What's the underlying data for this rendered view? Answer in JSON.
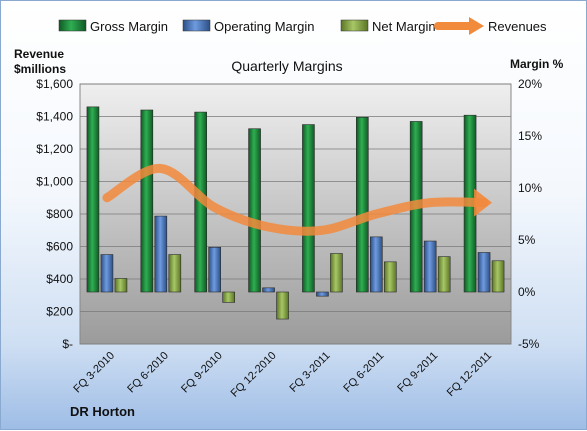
{
  "chart_data": {
    "type": "bar",
    "title": "Quarterly Margins",
    "company": "DR Horton",
    "ylabel_left": "Revenue\n$millions",
    "ylabel_right": "Margin %",
    "categories": [
      "FQ 3-2010",
      "FQ 6-2010",
      "FQ 9-2010",
      "FQ 12-2010",
      "FQ 3-2011",
      "FQ 6-2011",
      "FQ 9-2011",
      "FQ 12-2011"
    ],
    "left_axis": {
      "min": 0,
      "max": 1600,
      "step": 200,
      "tick_labels": [
        "$-",
        "$200",
        "$400",
        "$600",
        "$800",
        "$1,000",
        "$1,200",
        "$1,400",
        "$1,600"
      ]
    },
    "right_axis": {
      "min": -5,
      "max": 20,
      "step": 5,
      "tick_labels": [
        "-5%",
        "0%",
        "5%",
        "10%",
        "15%",
        "20%"
      ]
    },
    "series": [
      {
        "name": "Gross Margin",
        "type": "bar",
        "axis": "right",
        "color": "#1e8a3c",
        "values": [
          17.8,
          17.5,
          17.3,
          15.7,
          16.1,
          16.8,
          16.4,
          17.0
        ]
      },
      {
        "name": "Operating Margin",
        "type": "bar",
        "axis": "right",
        "color": "#4f7fc4",
        "values": [
          3.6,
          7.3,
          4.3,
          0.4,
          -0.4,
          5.3,
          4.9,
          3.8
        ]
      },
      {
        "name": "Net Margin",
        "type": "bar",
        "axis": "right",
        "color": "#8fb04c",
        "values": [
          1.3,
          3.6,
          -1.0,
          -2.6,
          3.7,
          2.9,
          3.4,
          3.0
        ]
      },
      {
        "name": "Revenues",
        "type": "line",
        "axis": "left",
        "color": "#f28a3c",
        "values": [
          900,
          1080,
          840,
          720,
          700,
          800,
          870,
          870
        ]
      }
    ],
    "grid": true,
    "legend": "top"
  }
}
